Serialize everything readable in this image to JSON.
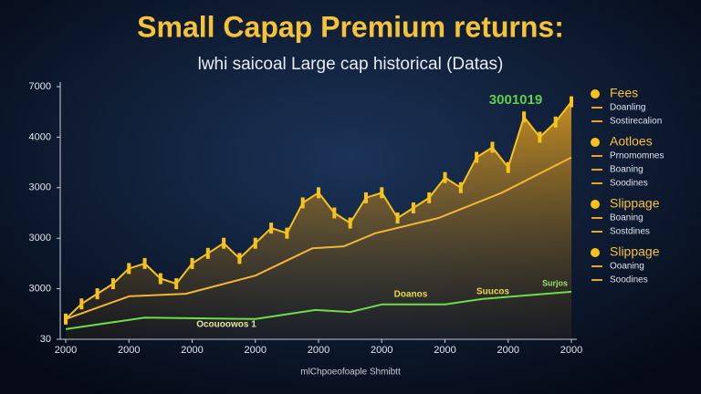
{
  "chart_data": {
    "type": "line",
    "title": "Small Capap Premium returns:",
    "subtitle": "lwhi saicoal Large cap historical (Datas)",
    "caption": "mlChpoeofoaple Shmibtt",
    "xlim": [
      0,
      8
    ],
    "xticks": [
      {
        "value": 0,
        "label": "2000"
      },
      {
        "value": 1,
        "label": "2000"
      },
      {
        "value": 2,
        "label": "2000"
      },
      {
        "value": 3,
        "label": "2000"
      },
      {
        "value": 4,
        "label": "2000"
      },
      {
        "value": 5,
        "label": "2000"
      },
      {
        "value": 6,
        "label": "2000"
      },
      {
        "value": 7,
        "label": "2000"
      },
      {
        "value": 8,
        "label": "2000"
      }
    ],
    "ylim": [
      0,
      5
    ],
    "yticks": [
      {
        "value": 0,
        "label": "30"
      },
      {
        "value": 1,
        "label": "3000"
      },
      {
        "value": 2,
        "label": "3000"
      },
      {
        "value": 3,
        "label": "3000"
      },
      {
        "value": 4,
        "label": "4000"
      },
      {
        "value": 5,
        "label": "7000"
      }
    ],
    "series": [
      {
        "color": "#f7c21c",
        "area": true,
        "x": [
          0,
          0.25,
          0.5,
          0.75,
          1,
          1.25,
          1.5,
          1.75,
          2,
          2.25,
          2.5,
          2.75,
          3,
          3.25,
          3.5,
          3.75,
          4,
          4.25,
          4.5,
          4.75,
          5,
          5.25,
          5.5,
          5.75,
          6,
          6.25,
          6.5,
          6.75,
          7,
          7.25,
          7.5,
          7.75,
          8
        ],
        "values": [
          0.4,
          0.7,
          0.9,
          1.1,
          1.4,
          1.5,
          1.2,
          1.1,
          1.5,
          1.7,
          1.9,
          1.6,
          1.9,
          2.2,
          2.1,
          2.7,
          2.9,
          2.5,
          2.3,
          2.8,
          2.9,
          2.4,
          2.6,
          2.8,
          3.2,
          3.0,
          3.6,
          3.8,
          3.4,
          4.4,
          4.0,
          4.3,
          4.7
        ]
      },
      {
        "color": "#f3b536",
        "x": [
          0,
          1,
          1.9,
          3,
          3.9,
          4.4,
          4.9,
          5.9,
          6.9,
          8
        ],
        "values": [
          0.4,
          0.85,
          0.9,
          1.26,
          1.8,
          1.84,
          2.1,
          2.4,
          2.9,
          3.6
        ]
      },
      {
        "color": "#6fdc4c",
        "x": [
          0,
          1.25,
          3,
          3.95,
          4.5,
          5,
          6,
          6.6,
          8
        ],
        "values": [
          0.2,
          0.43,
          0.4,
          0.58,
          0.54,
          0.69,
          0.69,
          0.8,
          0.94
        ]
      }
    ],
    "annotations": [
      "3001019",
      "Doanos",
      "Suucos",
      "Surjos",
      "Ocouoowos 1"
    ],
    "legend_groups": [
      {
        "title": "Fees",
        "items": [
          "Doanling",
          "Sostirecalion"
        ]
      },
      {
        "title": "Aotloes",
        "items": [
          "Prnomomnes",
          "Boaning",
          "Soodines"
        ]
      },
      {
        "title": "Slippage",
        "items": [
          "Boaning",
          "Sostdines"
        ]
      },
      {
        "title": "Slippage",
        "items": [
          "Ooaning",
          "Soodines"
        ]
      }
    ]
  }
}
